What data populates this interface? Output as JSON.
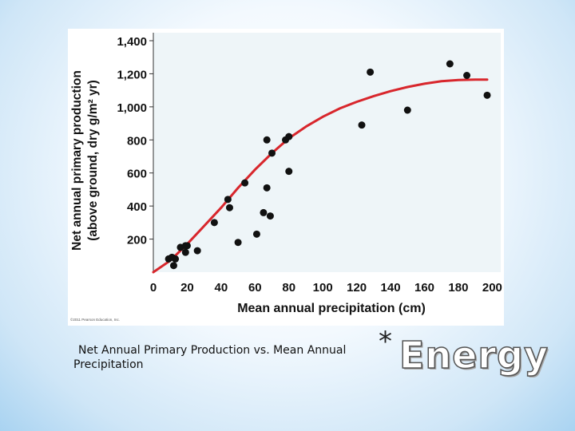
{
  "slide": {
    "caption": "Net Annual Primary Production vs. Mean Annual Precipitation",
    "asterisk": "*",
    "title": "Energy"
  },
  "chart_data": {
    "type": "scatter",
    "title": "",
    "xlabel": "Mean annual precipitation (cm)",
    "ylabel_line1": "Net annual primary production",
    "ylabel_line2": "(above ground, dry g/m² yr)",
    "xlim": [
      0,
      200
    ],
    "ylim": [
      0,
      1400
    ],
    "xticks": [
      0,
      20,
      40,
      60,
      80,
      100,
      120,
      140,
      160,
      180,
      200
    ],
    "yticks": [
      200,
      400,
      600,
      800,
      1000,
      1200,
      1400
    ],
    "ytick_labels": [
      "200",
      "400",
      "600",
      "800",
      "1,000",
      "1,200",
      "1,400"
    ],
    "copyright": "©2011 Pearson Education, Inc.",
    "point_color": "#111111",
    "curve_color": "#d8262c",
    "points": [
      {
        "x": 9,
        "y": 80
      },
      {
        "x": 11,
        "y": 90
      },
      {
        "x": 12,
        "y": 40
      },
      {
        "x": 13,
        "y": 80
      },
      {
        "x": 16,
        "y": 150
      },
      {
        "x": 19,
        "y": 120
      },
      {
        "x": 19,
        "y": 160
      },
      {
        "x": 20,
        "y": 160
      },
      {
        "x": 26,
        "y": 130
      },
      {
        "x": 36,
        "y": 300
      },
      {
        "x": 44,
        "y": 440
      },
      {
        "x": 45,
        "y": 390
      },
      {
        "x": 50,
        "y": 180
      },
      {
        "x": 54,
        "y": 540
      },
      {
        "x": 61,
        "y": 230
      },
      {
        "x": 65,
        "y": 360
      },
      {
        "x": 67,
        "y": 800
      },
      {
        "x": 67,
        "y": 510
      },
      {
        "x": 69,
        "y": 340
      },
      {
        "x": 70,
        "y": 720
      },
      {
        "x": 78,
        "y": 800
      },
      {
        "x": 80,
        "y": 820
      },
      {
        "x": 80,
        "y": 610
      },
      {
        "x": 123,
        "y": 890
      },
      {
        "x": 128,
        "y": 1210
      },
      {
        "x": 150,
        "y": 980
      },
      {
        "x": 175,
        "y": 1260
      },
      {
        "x": 185,
        "y": 1190
      },
      {
        "x": 197,
        "y": 1070
      }
    ],
    "curve": [
      {
        "x": 0,
        "y": 0
      },
      {
        "x": 10,
        "y": 70
      },
      {
        "x": 20,
        "y": 170
      },
      {
        "x": 30,
        "y": 280
      },
      {
        "x": 40,
        "y": 390
      },
      {
        "x": 50,
        "y": 510
      },
      {
        "x": 60,
        "y": 620
      },
      {
        "x": 70,
        "y": 720
      },
      {
        "x": 80,
        "y": 810
      },
      {
        "x": 90,
        "y": 880
      },
      {
        "x": 100,
        "y": 940
      },
      {
        "x": 110,
        "y": 990
      },
      {
        "x": 120,
        "y": 1030
      },
      {
        "x": 130,
        "y": 1065
      },
      {
        "x": 140,
        "y": 1095
      },
      {
        "x": 150,
        "y": 1120
      },
      {
        "x": 160,
        "y": 1140
      },
      {
        "x": 170,
        "y": 1155
      },
      {
        "x": 180,
        "y": 1162
      },
      {
        "x": 190,
        "y": 1165
      },
      {
        "x": 197,
        "y": 1165
      }
    ]
  }
}
